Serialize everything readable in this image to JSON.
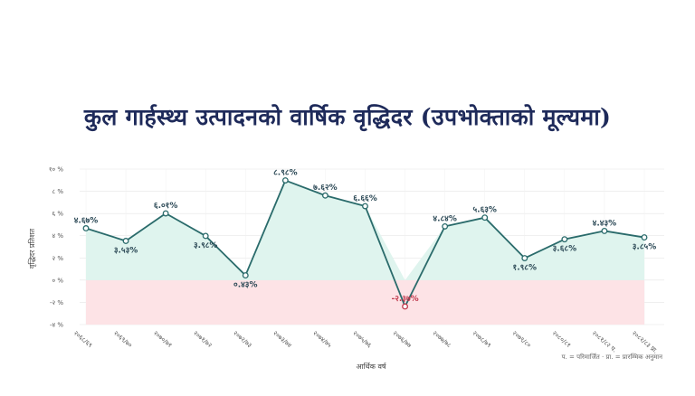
{
  "chart_data": {
    "type": "line",
    "title": "कुल गार्हस्थ्य उत्पादनको वार्षिक वृद्धिदर (उपभोक्ताको मूल्यमा)",
    "xlabel": "आर्थिक वर्ष",
    "ylabel": "वृद्धिदर प्रतिशत",
    "note": "प. = परिमार्जित  ·  प्रा. = प्रारम्भिक अनुमान",
    "ylim": [
      -4,
      10
    ],
    "yticks": [
      -4,
      -2,
      0,
      2,
      4,
      6,
      8,
      10
    ],
    "ytick_labels": [
      "-४ %",
      "-२ %",
      "० %",
      "२ %",
      "४ %",
      "६ %",
      "८ %",
      "१० %"
    ],
    "categories": [
      "२०६८/६९",
      "२०६९/७०",
      "२०७०/७१",
      "२०७१/७२",
      "२०७२/७३",
      "२०७३/७४",
      "२०७४/७५",
      "२०७५/७६",
      "२०७६/७७",
      "२०७७/७८",
      "२०७८/७९",
      "२०७९/८०",
      "२०८०/८१",
      "२०८१/८२ प.",
      "२०८२/८३ प्रा."
    ],
    "values": [
      4.67,
      3.53,
      6.01,
      3.98,
      0.43,
      8.98,
      7.62,
      6.66,
      -2.37,
      4.84,
      5.63,
      1.98,
      3.68,
      4.43,
      3.85
    ],
    "value_labels": [
      "४.६७%",
      "३.५३%",
      "६.०१%",
      "३.९८%",
      "०.४३%",
      "८.९८%",
      "७.६२%",
      "६.६६%",
      "-२.३७%",
      "४.८४%",
      "५.६३%",
      "१.९८%",
      "३.६८%",
      "४.४३%",
      "३.८५%"
    ],
    "grid": true,
    "colors": {
      "line": "#2a6b6b",
      "positive_fill": "#dff4ee",
      "negative_fill": "#fde3e6",
      "negative_marker": "#c0394d",
      "title": "#1e2a5a"
    }
  }
}
